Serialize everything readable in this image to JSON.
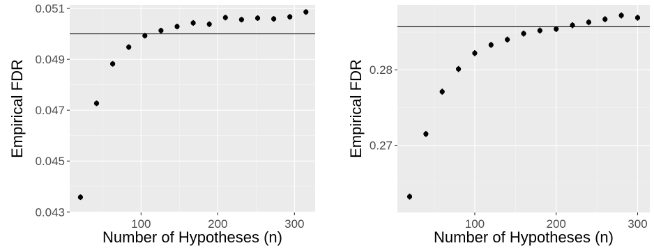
{
  "chart_data": [
    {
      "type": "scatter",
      "xlabel": "Number of Hypotheses (n)",
      "ylabel": "Empirical FDR",
      "xlim": [
        7,
        327
      ],
      "ylim": [
        0.04298,
        0.05114
      ],
      "x_ticks": [
        100,
        200,
        300
      ],
      "x_tick_labels": [
        "100",
        "200",
        "300"
      ],
      "y_ticks": [
        0.043,
        0.045,
        0.047,
        0.049,
        0.051
      ],
      "y_tick_labels": [
        "0.043",
        "0.045",
        "0.047",
        "0.049",
        "0.051"
      ],
      "hline": 0.05,
      "grid": true,
      "series": [
        {
          "x": [
            21,
            42,
            63,
            84,
            105,
            126,
            147,
            168,
            189,
            210,
            231,
            252,
            273,
            294,
            315
          ],
          "y": [
            0.04358,
            0.04727,
            0.04882,
            0.04948,
            0.04993,
            0.05013,
            0.05029,
            0.05043,
            0.05038,
            0.05064,
            0.05056,
            0.05062,
            0.05059,
            0.05067,
            0.05086
          ],
          "err": [
            0.00011,
            0.00011,
            0.00011,
            0.00011,
            0.00011,
            0.00011,
            0.00011,
            0.00011,
            0.00011,
            0.00011,
            0.00011,
            0.00011,
            0.00011,
            0.00011,
            0.00011
          ]
        }
      ]
    },
    {
      "type": "scatter",
      "xlabel": "Number of Hypotheses (n)",
      "ylabel": "Empirical FDR",
      "xlim": [
        5,
        315
      ],
      "ylim": [
        0.2611,
        0.2886
      ],
      "x_ticks": [
        100,
        200,
        300
      ],
      "x_tick_labels": [
        "100",
        "200",
        "300"
      ],
      "y_ticks": [
        0.27,
        0.28
      ],
      "y_tick_labels": [
        "0.27",
        "0.28"
      ],
      "hline": 0.2857,
      "grid": true,
      "series": [
        {
          "x": [
            20,
            40,
            60,
            80,
            100,
            120,
            140,
            160,
            180,
            200,
            220,
            240,
            260,
            280,
            300
          ],
          "y": [
            0.2632,
            0.2715,
            0.2771,
            0.2801,
            0.2822,
            0.2833,
            0.284,
            0.2848,
            0.2852,
            0.2854,
            0.2859,
            0.2863,
            0.2867,
            0.2872,
            0.2869
          ],
          "err": [
            0.0004,
            0.0004,
            0.0004,
            0.0004,
            0.0004,
            0.0004,
            0.0004,
            0.0004,
            0.0004,
            0.0004,
            0.0004,
            0.0004,
            0.0004,
            0.0004,
            0.0004
          ]
        }
      ]
    }
  ]
}
